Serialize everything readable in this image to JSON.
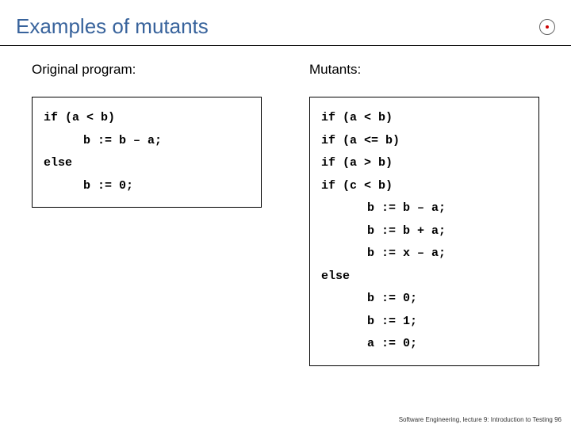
{
  "title": "Examples of mutants",
  "left": {
    "heading": "Original program:",
    "code": [
      {
        "text": "if (a < b)",
        "indent": 0
      },
      {
        "text": "b := b – a;",
        "indent": 1
      },
      {
        "text": "else",
        "indent": 0
      },
      {
        "text": "b := 0;",
        "indent": 1
      }
    ]
  },
  "right": {
    "heading": "Mutants:",
    "code": [
      {
        "text": "if (a < b)",
        "indent": 0
      },
      {
        "text": "if (a <= b)",
        "indent": 0
      },
      {
        "text": "if (a > b)",
        "indent": 0
      },
      {
        "text": "if (c < b)",
        "indent": 0
      },
      {
        "text": "b := b – a;",
        "indent": 2
      },
      {
        "text": "b := b + a;",
        "indent": 2
      },
      {
        "text": "b := x – a;",
        "indent": 2
      },
      {
        "text": "else",
        "indent": 0
      },
      {
        "text": "b := 0;",
        "indent": 2
      },
      {
        "text": "b := 1;",
        "indent": 2
      },
      {
        "text": "a := 0;",
        "indent": 2
      }
    ]
  },
  "footer": "Software Engineering, lecture 9: Introduction to Testing  96",
  "colors": {
    "title": "#38639c",
    "border": "#000000",
    "bg": "#ffffff"
  }
}
